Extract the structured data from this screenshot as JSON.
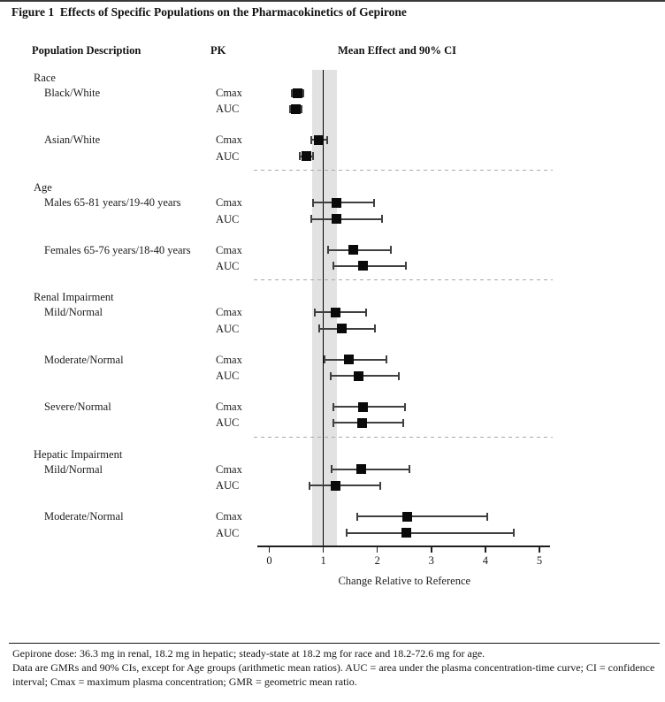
{
  "title": "Figure 1  Effects of Specific Populations on the Pharmacokinetics of Gepirone",
  "headers": {
    "population": "Population Description",
    "pk": "PK",
    "effect": "Mean Effect and 90% CI"
  },
  "footnotes": [
    "Gepirone dose: 36.3 mg in renal, 18.2 mg in hepatic; steady-state at 18.2 mg for race and 18.2-72.6 mg for age.",
    "Data are GMRs and 90% CIs, except for Age groups (arithmetic mean ratios). AUC = area under the plasma concentration-time curve; CI = confidence interval; Cmax = maximum plasma concentration; GMR = geometric mean ratio."
  ],
  "chart_data": {
    "type": "forest",
    "title": "Effects of Specific Populations on the Pharmacokinetics of Gepirone",
    "xlabel": "Change Relative to Reference",
    "x_ticks": [
      0,
      1,
      2,
      3,
      4,
      5
    ],
    "xlim": [
      0,
      5.2
    ],
    "reference_line": 1.0,
    "shaded_band": [
      0.8,
      1.25
    ],
    "band_color": "#e2e2e2",
    "marker_color": "#0a0a0a",
    "marker_shape": "filled-square",
    "ci_level": "90%",
    "sections": [
      {
        "name": "Race",
        "groups": [
          {
            "label": "Black/White",
            "rows": [
              {
                "pk": "Cmax",
                "mean": 0.52,
                "lo": 0.42,
                "hi": 0.63
              },
              {
                "pk": "AUC",
                "mean": 0.49,
                "lo": 0.39,
                "hi": 0.6
              }
            ]
          },
          {
            "label": "Asian/White",
            "rows": [
              {
                "pk": "Cmax",
                "mean": 0.92,
                "lo": 0.77,
                "hi": 1.08
              },
              {
                "pk": "AUC",
                "mean": 0.68,
                "lo": 0.56,
                "hi": 0.81
              }
            ]
          }
        ]
      },
      {
        "name": "Age",
        "groups": [
          {
            "label": "Males 65-81 years/19-40 years",
            "rows": [
              {
                "pk": "Cmax",
                "mean": 1.24,
                "lo": 0.81,
                "hi": 1.94
              },
              {
                "pk": "AUC",
                "mean": 1.25,
                "lo": 0.77,
                "hi": 2.09
              }
            ]
          },
          {
            "label": "Females 65-76 years/18-40 years",
            "rows": [
              {
                "pk": "Cmax",
                "mean": 1.55,
                "lo": 1.09,
                "hi": 2.25
              },
              {
                "pk": "AUC",
                "mean": 1.74,
                "lo": 1.18,
                "hi": 2.53
              }
            ]
          }
        ]
      },
      {
        "name": "Renal Impairment",
        "groups": [
          {
            "label": "Mild/Normal",
            "rows": [
              {
                "pk": "Cmax",
                "mean": 1.22,
                "lo": 0.84,
                "hi": 1.8
              },
              {
                "pk": "AUC",
                "mean": 1.34,
                "lo": 0.93,
                "hi": 1.95
              }
            ]
          },
          {
            "label": "Moderate/Normal",
            "rows": [
              {
                "pk": "Cmax",
                "mean": 1.48,
                "lo": 1.02,
                "hi": 2.17
              },
              {
                "pk": "AUC",
                "mean": 1.65,
                "lo": 1.14,
                "hi": 2.4
              }
            ]
          },
          {
            "label": "Severe/Normal",
            "rows": [
              {
                "pk": "Cmax",
                "mean": 1.74,
                "lo": 1.19,
                "hi": 2.52
              },
              {
                "pk": "AUC",
                "mean": 1.72,
                "lo": 1.19,
                "hi": 2.48
              }
            ]
          }
        ]
      },
      {
        "name": "Hepatic Impairment",
        "groups": [
          {
            "label": "Mild/Normal",
            "rows": [
              {
                "pk": "Cmax",
                "mean": 1.71,
                "lo": 1.15,
                "hi": 2.59
              },
              {
                "pk": "AUC",
                "mean": 1.22,
                "lo": 0.74,
                "hi": 2.05
              }
            ]
          },
          {
            "label": "Moderate/Normal",
            "rows": [
              {
                "pk": "Cmax",
                "mean": 2.56,
                "lo": 1.63,
                "hi": 4.03
              },
              {
                "pk": "AUC",
                "mean": 2.54,
                "lo": 1.44,
                "hi": 4.52
              }
            ]
          }
        ]
      }
    ]
  }
}
